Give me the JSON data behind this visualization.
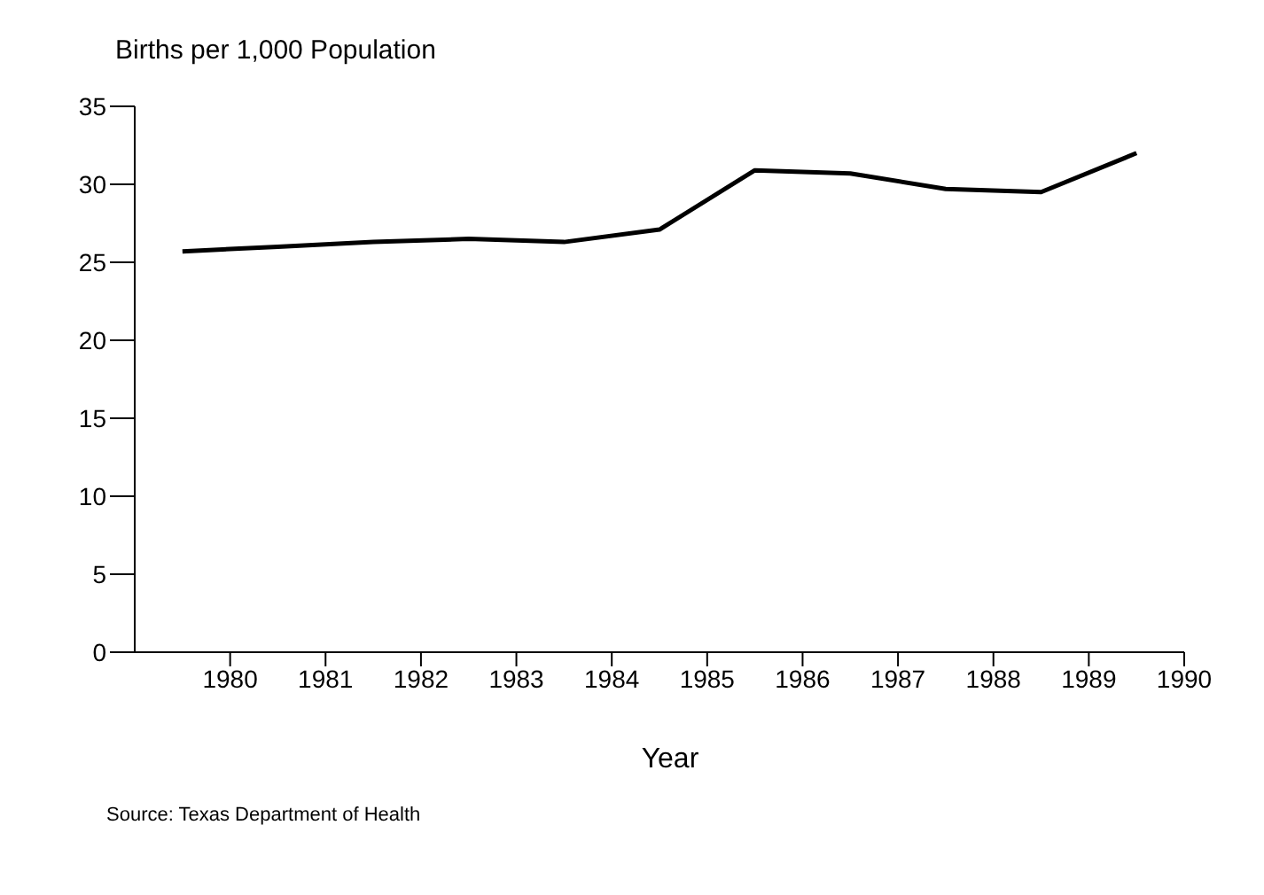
{
  "chart_data": {
    "type": "line",
    "ylabel": "Births per 1,000 Population",
    "xlabel": "Year",
    "annotations": [
      "Source: Texas Department of Health"
    ],
    "x": [
      1979.5,
      1980.5,
      1981.5,
      1982.5,
      1983.5,
      1984.5,
      1985.5,
      1986.5,
      1987.5,
      1988.5,
      1989.5
    ],
    "series": [
      {
        "color": "#000000",
        "values": [
          25.7,
          26.0,
          26.3,
          26.5,
          26.3,
          27.1,
          30.9,
          30.7,
          29.7,
          29.5,
          32.0
        ]
      }
    ],
    "xlim": [
      1979,
      1990
    ],
    "xticks": [
      1980,
      1981,
      1982,
      1983,
      1984,
      1985,
      1986,
      1987,
      1988,
      1989,
      1990
    ],
    "ylim": [
      0,
      35
    ],
    "yticks": [
      0,
      5,
      10,
      15,
      20,
      25,
      30,
      35
    ],
    "grid": false,
    "legend": false,
    "marker": "none",
    "line_style": "solid"
  }
}
